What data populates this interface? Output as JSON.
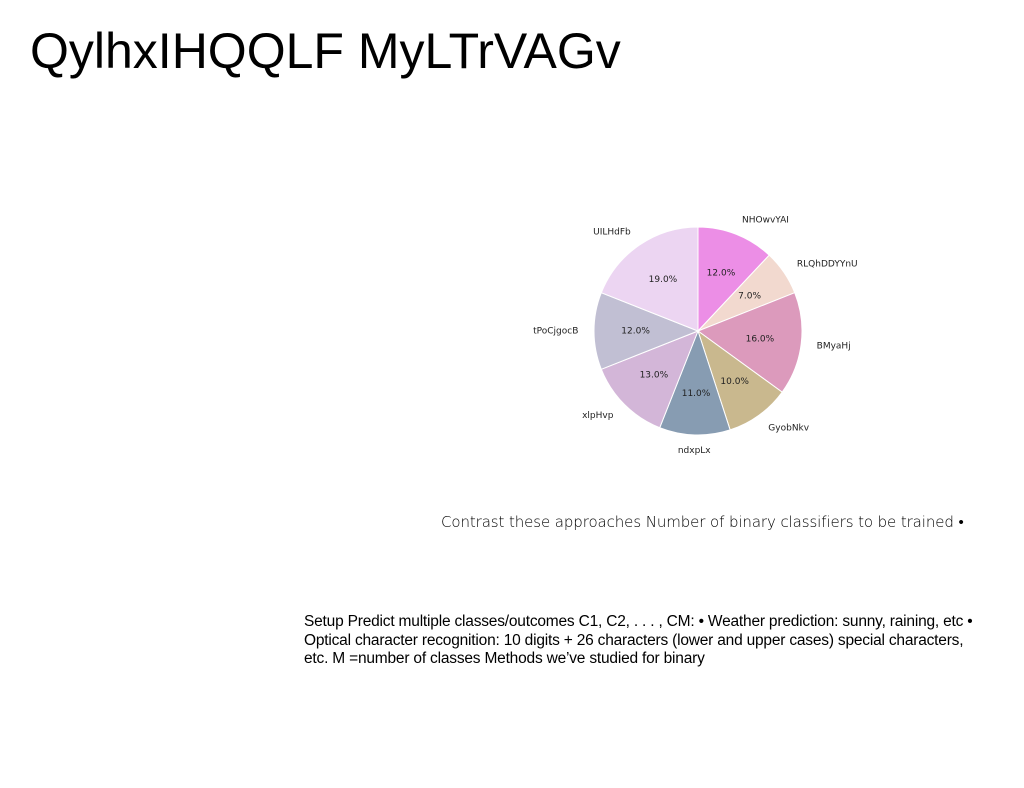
{
  "title": "QylhxIHQQLF MyLTrVAGv",
  "caption": "Contrast these approaches Number of binary classifiers to be trained •",
  "body": "Setup Predict multiple classes/outcomes C1, C2, . . . , CM: • Weather prediction: sunny, raining, etc • Optical character recognition: 10 digits + 26 characters (lower and upper cases) special characters, etc. M =number of classes Methods we’ve studied for binary",
  "chart_data": {
    "type": "pie",
    "start_angle": "top, clockwise",
    "slices": [
      {
        "label": "NHOwvYAI",
        "value": 12.0,
        "pct_label": "12.0%",
        "color": "#ec8ee6"
      },
      {
        "label": "RLQhDDYYnU",
        "value": 7.0,
        "pct_label": "7.0%",
        "color": "#f2d9cf"
      },
      {
        "label": "BMyaHj",
        "value": 16.0,
        "pct_label": "16.0%",
        "color": "#dc9abc"
      },
      {
        "label": "GyobNkv",
        "value": 10.0,
        "pct_label": "10.0%",
        "color": "#c9b88e"
      },
      {
        "label": "ndxpLx",
        "value": 11.0,
        "pct_label": "11.0%",
        "color": "#879cb2"
      },
      {
        "label": "xlpHvp",
        "value": 13.0,
        "pct_label": "13.0%",
        "color": "#d3b6d8"
      },
      {
        "label": "tPoCjgocB",
        "value": 12.0,
        "pct_label": "12.0%",
        "color": "#c1bfd3"
      },
      {
        "label": "UILHdFb",
        "value": 19.0,
        "pct_label": "19.0%",
        "color": "#ecd5f2"
      }
    ]
  }
}
